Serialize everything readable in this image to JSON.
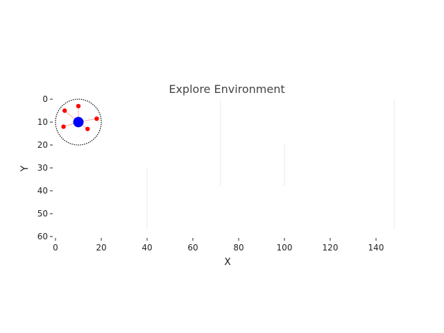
{
  "chart_data": {
    "type": "scatter",
    "title": "Explore Environment",
    "xlabel": "X",
    "ylabel": "Y",
    "xlim": [
      0,
      150
    ],
    "ylim": [
      60,
      0
    ],
    "y_axis_inverted": true,
    "xticks": [
      0,
      20,
      40,
      60,
      80,
      100,
      120,
      140
    ],
    "yticks": [
      0,
      10,
      20,
      30,
      40,
      50,
      60
    ],
    "grid": false,
    "agent": {
      "x": 10,
      "y": 10,
      "color": "#0000ff"
    },
    "sensor_range": {
      "center_x": 10,
      "center_y": 10,
      "radius": 10,
      "style": "dashed",
      "color": "#000000"
    },
    "detected_points": {
      "color": "#ff0000",
      "points": [
        {
          "x": 4,
          "y": 5
        },
        {
          "x": 10,
          "y": 3
        },
        {
          "x": 18,
          "y": 8.5
        },
        {
          "x": 3.5,
          "y": 12
        },
        {
          "x": 14,
          "y": 13
        }
      ]
    },
    "links": {
      "color": "#ffaaaa",
      "description_note": "faint lines connecting agent to each detected point"
    },
    "walls": {
      "color": "#f0f0f0",
      "segments": [
        {
          "x1": 40,
          "y1": 30,
          "x2": 40,
          "y2": 57
        },
        {
          "x1": 72,
          "y1": 0,
          "x2": 72,
          "y2": 38
        },
        {
          "x1": 100,
          "y1": 20,
          "x2": 100,
          "y2": 38
        },
        {
          "x1": 148,
          "y1": 0,
          "x2": 148,
          "y2": 57
        }
      ]
    }
  }
}
